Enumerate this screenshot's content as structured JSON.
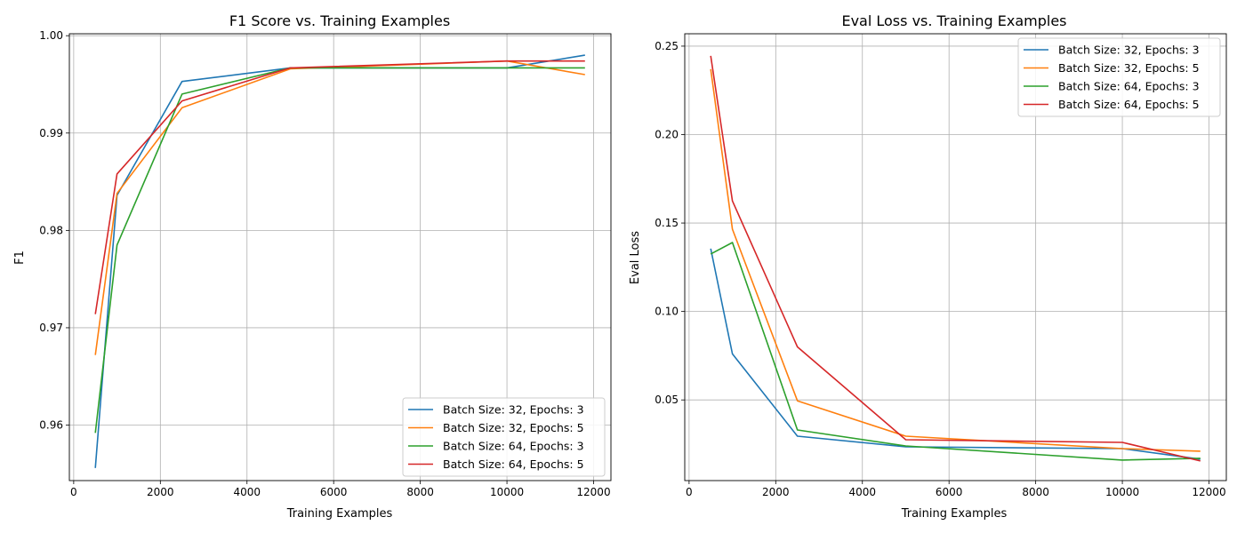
{
  "chart_data": [
    {
      "type": "line",
      "title": "F1 Score vs. Training Examples",
      "xlabel": "Training Examples",
      "ylabel": "F1",
      "xlim": [
        -100,
        12400
      ],
      "ylim": [
        0.9543,
        1.0002
      ],
      "xticks": [
        0,
        2000,
        4000,
        6000,
        8000,
        10000,
        12000
      ],
      "yticks": [
        0.96,
        0.97,
        0.98,
        0.99,
        1.0
      ],
      "ytick_labels": [
        "0.96",
        "0.97",
        "0.98",
        "0.99",
        "1.00"
      ],
      "grid": true,
      "legend_position": "bottom-right",
      "x": [
        500,
        1000,
        2500,
        5000,
        10000,
        11800
      ],
      "series": [
        {
          "name": "Batch Size: 32, Epochs: 3",
          "color": "#1f77b4",
          "values": [
            0.9556,
            0.9836,
            0.9953,
            0.9967,
            0.9967,
            0.998
          ]
        },
        {
          "name": "Batch Size: 32, Epochs: 5",
          "color": "#ff7f0e",
          "values": [
            0.9672,
            0.9838,
            0.9926,
            0.9966,
            0.9974,
            0.996
          ]
        },
        {
          "name": "Batch Size: 64, Epochs: 3",
          "color": "#2ca02c",
          "values": [
            0.9592,
            0.9785,
            0.994,
            0.9967,
            0.9967,
            0.9967
          ]
        },
        {
          "name": "Batch Size: 64, Epochs: 5",
          "color": "#d62728",
          "values": [
            0.9714,
            0.9858,
            0.9933,
            0.9967,
            0.9974,
            0.9974
          ]
        }
      ]
    },
    {
      "type": "line",
      "title": "Eval Loss vs. Training Examples",
      "xlabel": "Training Examples",
      "ylabel": "Eval Loss",
      "xlim": [
        -100,
        12400
      ],
      "ylim": [
        0.0044,
        0.257
      ],
      "xticks": [
        0,
        2000,
        4000,
        6000,
        8000,
        10000,
        12000
      ],
      "yticks": [
        0.05,
        0.1,
        0.15,
        0.2,
        0.25
      ],
      "ytick_labels": [
        "0.05",
        "0.10",
        "0.15",
        "0.20",
        "0.25"
      ],
      "grid": true,
      "legend_position": "top-right",
      "x": [
        500,
        1000,
        2500,
        5000,
        10000,
        11800
      ],
      "series": [
        {
          "name": "Batch Size: 32, Epochs: 3",
          "color": "#1f77b4",
          "values": [
            0.1355,
            0.076,
            0.0295,
            0.0235,
            0.0225,
            0.0165
          ]
        },
        {
          "name": "Batch Size: 32, Epochs: 5",
          "color": "#ff7f0e",
          "values": [
            0.237,
            0.1465,
            0.0495,
            0.0295,
            0.0225,
            0.021
          ]
        },
        {
          "name": "Batch Size: 64, Epochs: 3",
          "color": "#2ca02c",
          "values": [
            0.1325,
            0.139,
            0.033,
            0.024,
            0.016,
            0.017
          ]
        },
        {
          "name": "Batch Size: 64, Epochs: 5",
          "color": "#d62728",
          "values": [
            0.2445,
            0.1625,
            0.08,
            0.0275,
            0.026,
            0.0155
          ]
        }
      ]
    }
  ]
}
